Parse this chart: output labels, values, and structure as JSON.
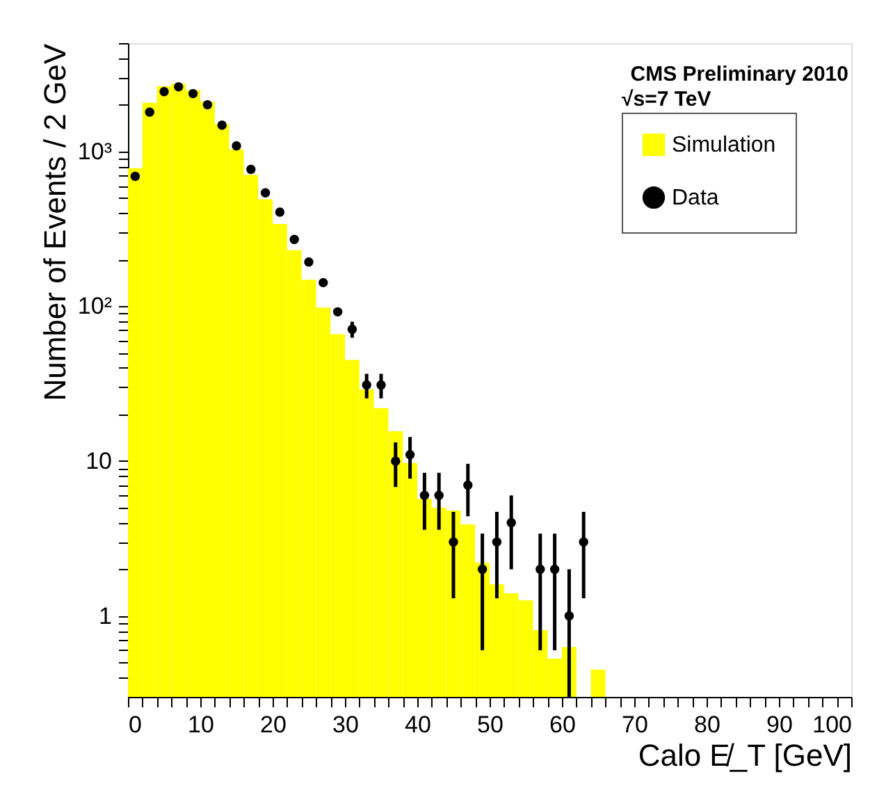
{
  "chart_data": {
    "type": "histogram",
    "xlabel": "Calo E̸_T [GeV]",
    "ylabel": "Number of Events / 2 GeV",
    "annotations": [
      "CMS Preliminary 2010",
      "√s=7 TeV"
    ],
    "bins": [
      0,
      2,
      4,
      6,
      8,
      10,
      12,
      14,
      16,
      18,
      20,
      22,
      24,
      26,
      28,
      30,
      32,
      34,
      36,
      38,
      40,
      42,
      44,
      46,
      48,
      50,
      52,
      54,
      56,
      58,
      60,
      62,
      64,
      66,
      68,
      70,
      72,
      74,
      76,
      78,
      80,
      82,
      84,
      86,
      88,
      90,
      92,
      94,
      96,
      98,
      100
    ],
    "series": [
      {
        "name": "Simulation",
        "color": "#ffff00",
        "values": [
          780,
          2060,
          2630,
          2740,
          2480,
          2100,
          1500,
          1030,
          705,
          490,
          340,
          230,
          148,
          98,
          66,
          45,
          29,
          22,
          15.6,
          9.7,
          5.7,
          5.0,
          4.8,
          3.9,
          2.2,
          1.6,
          1.4,
          1.26,
          0.81,
          0.53,
          0.63,
          null,
          0.45,
          null,
          null,
          null,
          null,
          null,
          null,
          null,
          null,
          null,
          null,
          null,
          null,
          null,
          null,
          null,
          null,
          null
        ]
      },
      {
        "name": "Data",
        "type": "scatter",
        "color": "#000000",
        "x": [
          1,
          3,
          5,
          7,
          9,
          11,
          13,
          15,
          17,
          19,
          21,
          23,
          25,
          27,
          29,
          31,
          33,
          35,
          37,
          39,
          41,
          43,
          45,
          47,
          49,
          51,
          53,
          57,
          59,
          61,
          63
        ],
        "values": [
          690,
          1790,
          2430,
          2610,
          2360,
          2000,
          1475,
          1085,
          765,
          540,
          405,
          270,
          193,
          142,
          92,
          71,
          31,
          31,
          10,
          11,
          6,
          6,
          3,
          7,
          2,
          3,
          4,
          2,
          2,
          1,
          3
        ],
        "errors": [
          null,
          null,
          null,
          null,
          null,
          null,
          null,
          null,
          null,
          null,
          null,
          null,
          null,
          null,
          null,
          8.4,
          5.6,
          5.6,
          3.2,
          3.3,
          2.4,
          2.4,
          1.7,
          2.6,
          1.4,
          1.7,
          2,
          1.4,
          1.4,
          [
            0.3,
            2
          ],
          1.7
        ]
      }
    ],
    "log": "y",
    "xlim": [
      0,
      100
    ],
    "ylim": [
      0.3,
      5000
    ],
    "xticks": [
      0,
      {
        "value": 2,
        "label": null
      },
      {
        "value": 4,
        "label": null
      },
      {
        "value": 6,
        "label": null
      },
      {
        "value": 8,
        "label": null
      },
      10,
      {
        "value": 12,
        "label": null
      },
      {
        "value": 14,
        "label": null
      },
      {
        "value": 16,
        "label": null
      },
      {
        "value": 18,
        "label": null
      },
      20,
      {
        "value": 22,
        "label": null
      },
      {
        "value": 24,
        "label": null
      },
      {
        "value": 26,
        "label": null
      },
      {
        "value": 28,
        "label": null
      },
      30,
      {
        "value": 32,
        "label": null
      },
      {
        "value": 34,
        "label": null
      },
      {
        "value": 36,
        "label": null
      },
      {
        "value": 38,
        "label": null
      },
      40,
      {
        "value": 42,
        "label": null
      },
      {
        "value": 44,
        "label": null
      },
      {
        "value": 46,
        "label": null
      },
      {
        "value": 48,
        "label": null
      },
      50,
      {
        "value": 52,
        "label": null
      },
      {
        "value": 54,
        "label": null
      },
      {
        "value": 56,
        "label": null
      },
      {
        "value": 58,
        "label": null
      },
      60,
      {
        "value": 62,
        "label": null
      },
      {
        "value": 64,
        "label": null
      },
      {
        "value": 66,
        "label": null
      },
      {
        "value": 68,
        "label": null
      },
      70,
      {
        "value": 72,
        "label": null
      },
      {
        "value": 74,
        "label": null
      },
      {
        "value": 76,
        "label": null
      },
      {
        "value": 78,
        "label": null
      },
      80,
      {
        "value": 82,
        "label": null
      },
      {
        "value": 84,
        "label": null
      },
      {
        "value": 86,
        "label": null
      },
      {
        "value": 88,
        "label": null
      },
      90,
      {
        "value": 92,
        "label": null
      },
      {
        "value": 94,
        "label": null
      },
      {
        "value": 96,
        "label": null
      },
      {
        "value": 98,
        "label": null
      },
      100
    ],
    "yticks": [
      {
        "value": 0.4,
        "label": null
      },
      {
        "value": 0.5,
        "label": null
      },
      {
        "value": 0.6,
        "label": null
      },
      {
        "value": 0.7,
        "label": null
      },
      {
        "value": 0.8,
        "label": null
      },
      {
        "value": 0.9,
        "label": null
      },
      1,
      {
        "value": 2,
        "label": null
      },
      {
        "value": 3,
        "label": null
      },
      {
        "value": 4,
        "label": null
      },
      {
        "value": 5,
        "label": null
      },
      {
        "value": 6,
        "label": null
      },
      {
        "value": 7,
        "label": null
      },
      {
        "value": 8,
        "label": null
      },
      {
        "value": 9,
        "label": null
      },
      10,
      {
        "value": 20,
        "label": null
      },
      {
        "value": 30,
        "label": null
      },
      {
        "value": 40,
        "label": null
      },
      {
        "value": 50,
        "label": null
      },
      {
        "value": 60,
        "label": null
      },
      {
        "value": 70,
        "label": null
      },
      {
        "value": 80,
        "label": null
      },
      {
        "value": 90,
        "label": null
      },
      {
        "value": 100,
        "label": "10²"
      },
      {
        "value": 200,
        "label": null
      },
      {
        "value": 300,
        "label": null
      },
      {
        "value": 400,
        "label": null
      },
      {
        "value": 500,
        "label": null
      },
      {
        "value": 600,
        "label": null
      },
      {
        "value": 700,
        "label": null
      },
      {
        "value": 800,
        "label": null
      },
      {
        "value": 900,
        "label": null
      },
      {
        "value": 1000,
        "label": "10³"
      },
      {
        "value": 2000,
        "label": null
      },
      {
        "value": 3000,
        "label": null
      },
      {
        "value": 4000,
        "label": null
      },
      {
        "value": 5000,
        "label": null
      }
    ],
    "marker": "circle",
    "grid": false,
    "legend": "top right"
  }
}
